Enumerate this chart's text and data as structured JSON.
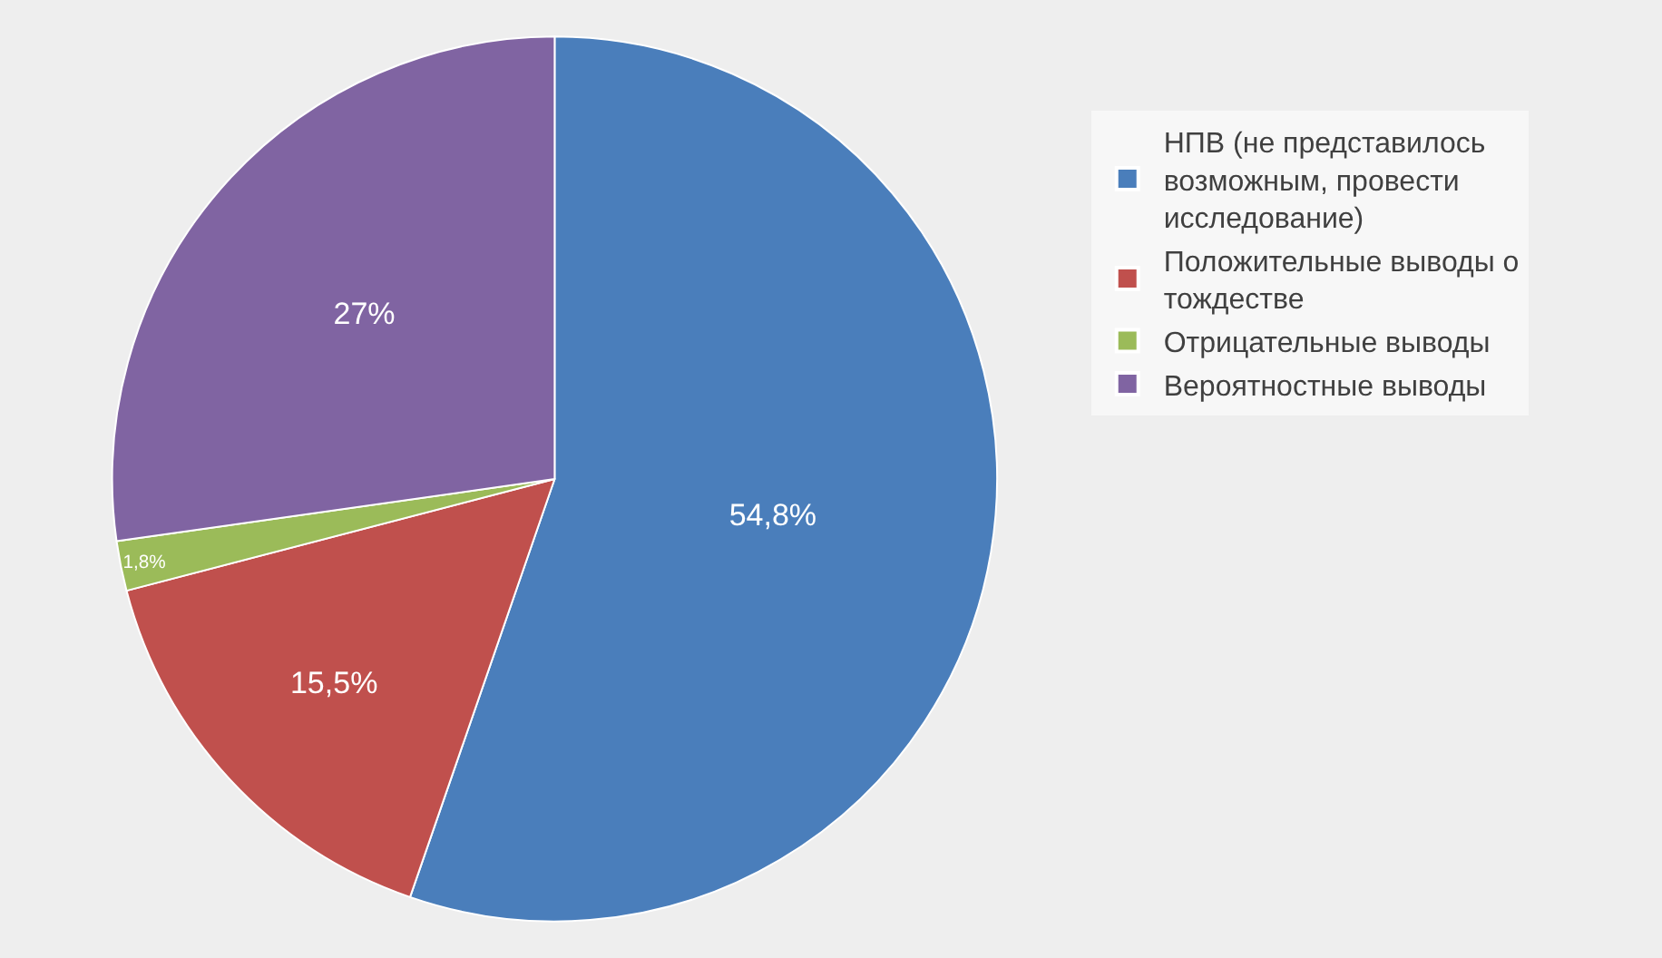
{
  "chart_data": {
    "type": "pie",
    "categories": [
      "НПВ (не представилось возможным, провести исследование)",
      "Положительные выводы о тождестве",
      "Отрицательные выводы",
      "Вероятностные выводы"
    ],
    "values": [
      54.8,
      15.5,
      1.8,
      27
    ],
    "colors": [
      "#4a7ebb",
      "#c0504d",
      "#9bbb59",
      "#8064a2"
    ],
    "value_labels": [
      "54,8%",
      "15,5%",
      "1,8%",
      "27%"
    ],
    "legend": "right"
  }
}
